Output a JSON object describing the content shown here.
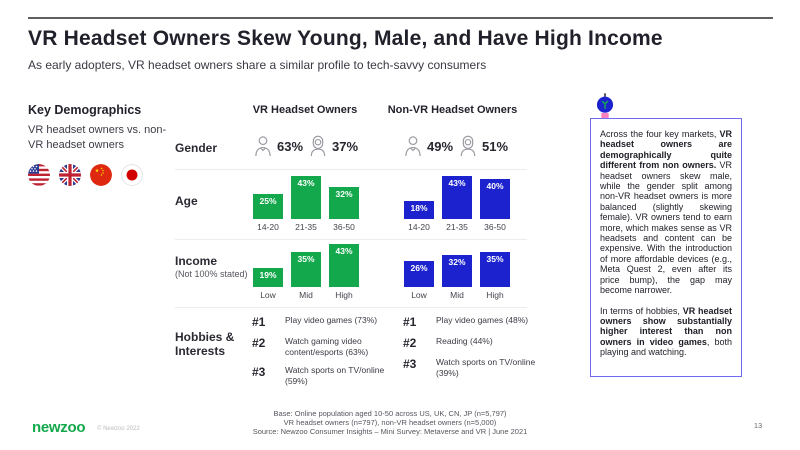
{
  "slide": {
    "title": "VR Headset Owners Skew Young, Male, and Have High Income",
    "subtitle": "As early adopters, VR headset owners share a similar profile to tech-savvy consumers",
    "page_number": "13"
  },
  "key_demographics": {
    "heading": "Key Demographics",
    "description": "VR headset owners vs. non-VR headset owners",
    "flags": [
      "us-flag",
      "uk-flag",
      "china-flag",
      "japan-flag"
    ]
  },
  "comparison": {
    "column_headers": {
      "vr": "VR Headset Owners",
      "non_vr": "Non-VR Headset Owners"
    },
    "gender": {
      "label": "Gender",
      "vr_male": "63%",
      "vr_female": "37%",
      "non_vr_male": "49%",
      "non_vr_female": "51%"
    },
    "age": {
      "label": "Age"
    },
    "income": {
      "label": "Income",
      "note": "(Not 100% stated)"
    },
    "hobbies": {
      "label": "Hobbies & Interests",
      "vr": [
        {
          "rank": "#1",
          "text": "Play video games (73%)"
        },
        {
          "rank": "#2",
          "text": "Watch gaming video content/esports (63%)"
        },
        {
          "rank": "#3",
          "text": "Watch sports on TV/online (59%)"
        }
      ],
      "non_vr": [
        {
          "rank": "#1",
          "text": "Play video games (48%)"
        },
        {
          "rank": "#2",
          "text": "Reading (44%)"
        },
        {
          "rank": "#3",
          "text": "Watch sports on TV/online (39%)"
        }
      ]
    }
  },
  "chart_data": [
    {
      "type": "bar",
      "name": "age-vr",
      "title": "Age — VR Headset Owners",
      "categories": [
        "14-20",
        "21-35",
        "36-50"
      ],
      "values": [
        25,
        43,
        32
      ],
      "value_suffix": "%",
      "color": "#12a84b"
    },
    {
      "type": "bar",
      "name": "age-nonvr",
      "title": "Age — Non-VR Headset Owners",
      "categories": [
        "14-20",
        "21-35",
        "36-50"
      ],
      "values": [
        18,
        43,
        40
      ],
      "value_suffix": "%",
      "color": "#1c23ce"
    },
    {
      "type": "bar",
      "name": "income-vr",
      "title": "Income — VR Headset Owners",
      "categories": [
        "Low",
        "Mid",
        "High"
      ],
      "values": [
        19,
        35,
        43
      ],
      "value_suffix": "%",
      "color": "#12a84b"
    },
    {
      "type": "bar",
      "name": "income-nonvr",
      "title": "Income — Non-VR Headset Owners",
      "categories": [
        "Low",
        "Mid",
        "High"
      ],
      "values": [
        26,
        32,
        35
      ],
      "value_suffix": "%",
      "color": "#1c23ce"
    }
  ],
  "insight": {
    "paragraphs": [
      [
        {
          "text": "Across the four key markets, ",
          "bold": false
        },
        {
          "text": "VR headset owners are demographically quite different from non owners.",
          "bold": true
        },
        {
          "text": " VR headset owners skew male, while the gender split among non-VR headset owners is more balanced (slightly skewing female). VR owners tend to earn more, which makes sense as VR headsets and content can be expensive. With the introduction of more affordable devices (e.g., Meta Quest 2, even after its price bump), the gap may become narrower.",
          "bold": false
        }
      ],
      [
        {
          "text": "In terms of hobbies, ",
          "bold": false
        },
        {
          "text": "VR headset owners show substantially higher interest than non owners in video games",
          "bold": true
        },
        {
          "text": ", both playing and watching.",
          "bold": false
        }
      ]
    ]
  },
  "footer": {
    "line1": "Base: Online population aged 10-50 across US, UK, CN, JP (n=5,797)",
    "line2": "VR headset owners (n=797), non-VR headset owners (n=5,000)",
    "line3": "Source: Newzoo Consumer Insights – Mini Survey: Metaverse and VR | June 2021"
  },
  "brand": {
    "logo_text": "newzoo",
    "copyright": "© Newzoo 2022",
    "green": "#12a84b",
    "blue": "#1c23ce",
    "insight_border": "#6e6bf2"
  }
}
